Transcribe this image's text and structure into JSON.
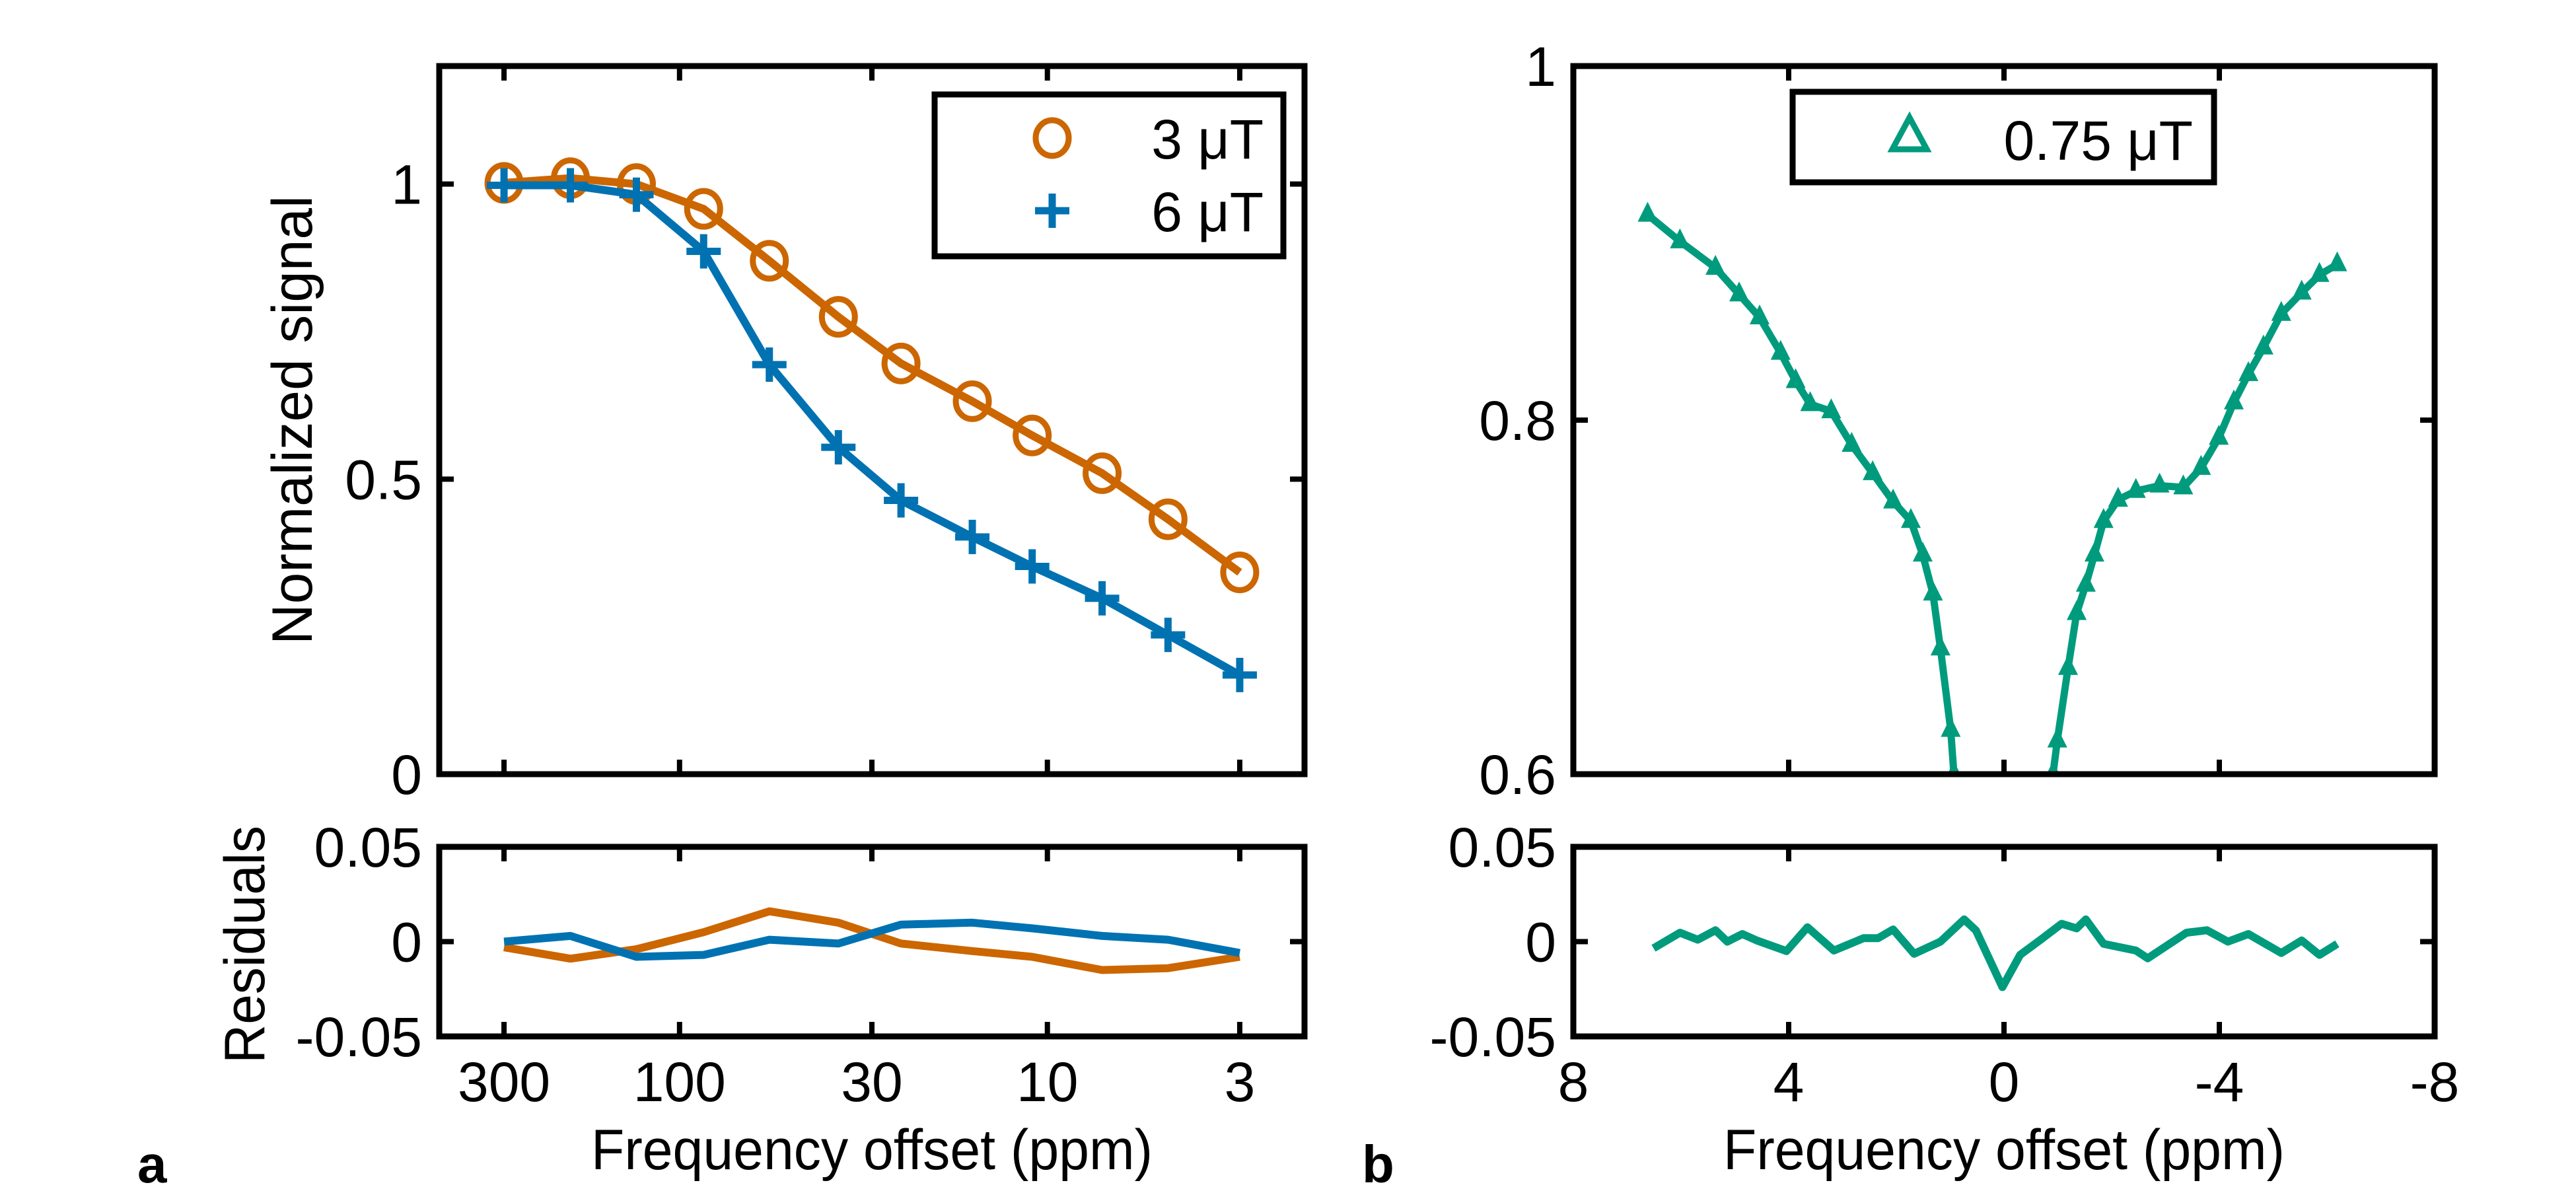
{
  "figure": {
    "panel_labels": [
      "a",
      "b"
    ]
  },
  "chart_data": [
    {
      "id": "a-main",
      "type": "line",
      "panel": "a",
      "xlabel": "",
      "ylabel": "Normalized signal",
      "xscale": "log",
      "x_reversed": true,
      "xlim": [
        2,
        450
      ],
      "ylim": [
        0,
        1.2
      ],
      "xticks": [
        300,
        100,
        30,
        10,
        3
      ],
      "xticklabels": [],
      "yticks": [
        0,
        0.5,
        1
      ],
      "yticklabels": [
        "0",
        "0.5",
        "1"
      ],
      "grid": false,
      "legend": "top-right",
      "series": [
        {
          "name": "3 μT",
          "color": "#CC6600",
          "marker": "circle",
          "x": [
            300,
            198,
            131,
            86,
            57,
            37,
            25,
            16,
            11,
            7.1,
            4.7,
            3
          ],
          "y": [
            1.002,
            1.01,
            1.0,
            0.958,
            0.87,
            0.775,
            0.696,
            0.632,
            0.574,
            0.51,
            0.432,
            0.342
          ]
        },
        {
          "name": "6 μT",
          "color": "#0072B2",
          "marker": "plus",
          "x": [
            300,
            198,
            131,
            86,
            57,
            37,
            25,
            16,
            11,
            7.1,
            4.7,
            3
          ],
          "y": [
            0.998,
            0.998,
            0.982,
            0.886,
            0.694,
            0.554,
            0.464,
            0.402,
            0.352,
            0.298,
            0.236,
            0.168
          ]
        }
      ]
    },
    {
      "id": "a-residuals",
      "type": "line",
      "panel": "a",
      "xlabel": "Frequency offset (ppm)",
      "ylabel": "Residuals",
      "xscale": "log",
      "x_reversed": true,
      "xlim": [
        2,
        450
      ],
      "ylim": [
        -0.05,
        0.05
      ],
      "xticks": [
        300,
        100,
        30,
        10,
        3
      ],
      "xticklabels": [
        "300",
        "100",
        "30",
        "10",
        "3"
      ],
      "yticks": [
        -0.05,
        0,
        0.05
      ],
      "yticklabels": [
        "-0.05",
        "0",
        "0.05"
      ],
      "grid": false,
      "series": [
        {
          "color": "#CC6600",
          "x": [
            300,
            198,
            131,
            86,
            57,
            37,
            25,
            16,
            11,
            7.1,
            4.7,
            3
          ],
          "y": [
            -0.003,
            -0.009,
            -0.004,
            0.005,
            0.016,
            0.01,
            -0.001,
            -0.005,
            -0.008,
            -0.015,
            -0.014,
            -0.008
          ]
        },
        {
          "color": "#0072B2",
          "x": [
            300,
            198,
            131,
            86,
            57,
            37,
            25,
            16,
            11,
            7.1,
            4.7,
            3
          ],
          "y": [
            0.0,
            0.003,
            -0.008,
            -0.007,
            0.001,
            -0.001,
            0.009,
            0.01,
            0.007,
            0.003,
            0.001,
            -0.006
          ]
        }
      ]
    },
    {
      "id": "b-main",
      "type": "line",
      "panel": "b",
      "xlabel": "",
      "ylabel": "",
      "xscale": "linear",
      "x_reversed": true,
      "xlim": [
        -8,
        8
      ],
      "ylim": [
        0.6,
        1
      ],
      "xticks": [
        8,
        4,
        0,
        -4,
        -8
      ],
      "xticklabels": [],
      "yticks": [
        0.6,
        0.8,
        1
      ],
      "yticklabels": [
        "0.6",
        "0.8",
        "1"
      ],
      "grid": false,
      "legend": "top-center",
      "series": [
        {
          "name": "0.75 μT",
          "color": "#009B7D",
          "marker": "triangle",
          "x": [
            6.62,
            6.02,
            5.36,
            4.92,
            4.54,
            4.15,
            3.87,
            3.6,
            3.21,
            2.83,
            2.44,
            2.06,
            1.73,
            1.51,
            1.32,
            1.18,
            0.99,
            0.93,
            0.85,
            -0.85,
            -0.91,
            -0.99,
            -1.19,
            -1.35,
            -1.52,
            -1.68,
            -1.85,
            -2.12,
            -2.45,
            -2.89,
            -3.33,
            -3.66,
            -3.99,
            -4.27,
            -4.54,
            -4.82,
            -5.15,
            -5.53,
            -5.86,
            -6.19
          ],
          "y": [
            0.916,
            0.901,
            0.886,
            0.871,
            0.858,
            0.838,
            0.822,
            0.809,
            0.805,
            0.786,
            0.77,
            0.754,
            0.743,
            0.724,
            0.702,
            0.671,
            0.625,
            0.6,
            0.58,
            0.58,
            0.6,
            0.619,
            0.66,
            0.691,
            0.707,
            0.724,
            0.743,
            0.755,
            0.76,
            0.763,
            0.762,
            0.773,
            0.79,
            0.81,
            0.826,
            0.841,
            0.86,
            0.872,
            0.882,
            0.888
          ]
        }
      ]
    },
    {
      "id": "b-residuals",
      "type": "line",
      "panel": "b",
      "xlabel": "Frequency offset (ppm)",
      "ylabel": "",
      "xscale": "linear",
      "x_reversed": true,
      "xlim": [
        -8,
        8
      ],
      "ylim": [
        -0.05,
        0.05
      ],
      "xticks": [
        8,
        4,
        0,
        -4,
        -8
      ],
      "xticklabels": [
        "8",
        "4",
        "0",
        "-4",
        "-8"
      ],
      "yticks": [
        -0.05,
        0,
        0.05
      ],
      "yticklabels": [
        "-0.05",
        "0",
        "0.05"
      ],
      "grid": false,
      "series": [
        {
          "color": "#009B7D",
          "x": [
            6.51,
            6.02,
            5.69,
            5.36,
            5.14,
            4.86,
            4.59,
            4.04,
            3.65,
            3.16,
            2.61,
            2.34,
            2.06,
            1.67,
            1.18,
            0.74,
            0.52,
            0.03,
            -0.3,
            -0.69,
            -1.07,
            -1.35,
            -1.52,
            -1.85,
            -2.45,
            -2.67,
            -3.39,
            -3.77,
            -4.16,
            -4.54,
            -5.15,
            -5.53,
            -5.86,
            -6.19
          ],
          "y": [
            -0.0035,
            0.0047,
            0.001,
            0.006,
            0.0,
            0.004,
            0.0006,
            -0.005,
            0.0076,
            -0.0047,
            0.0018,
            0.0018,
            0.0064,
            -0.0064,
            0.0,
            0.0117,
            0.0059,
            -0.024,
            -0.007,
            0.0012,
            0.0094,
            0.007,
            0.0117,
            -0.0012,
            -0.0047,
            -0.0088,
            0.0047,
            0.006,
            0.0,
            0.004,
            -0.006,
            0.0006,
            -0.007,
            -0.0012
          ]
        }
      ]
    }
  ]
}
